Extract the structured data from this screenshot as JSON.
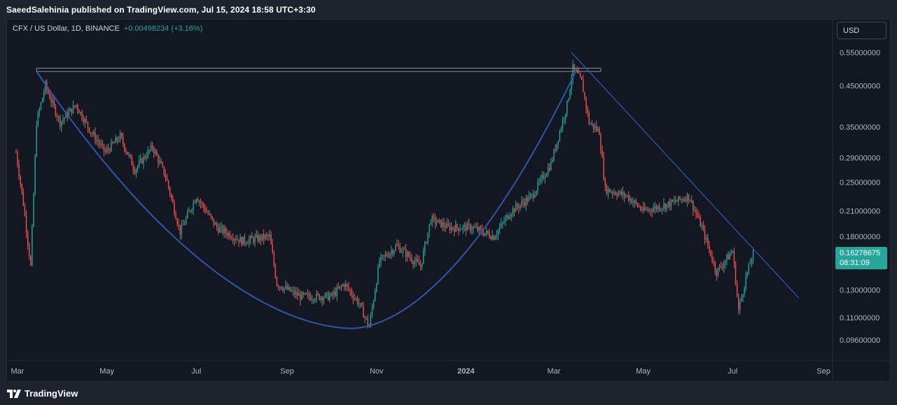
{
  "header": {
    "published": "SaeedSalehinia published on TradingView.com, Jul 15, 2024 18:58 UTC+3:30"
  },
  "legend": {
    "symbol": "CFX / US Dollar, 1D, BINANCE",
    "change": "+0.00498234 (+3.16%)"
  },
  "currency": "USD",
  "last_price": {
    "value": "0.16278675",
    "countdown": "08:31:09"
  },
  "footer": {
    "brand": "TradingView"
  },
  "colors": {
    "up": "#26a69a",
    "down": "#ef5350",
    "pattern": "#2f56a8",
    "background": "#131722",
    "axis_text": "#b2b5be"
  },
  "chart_data": {
    "type": "candlestick",
    "title": "CFX / US Dollar, 1D, BINANCE",
    "scale": "log",
    "grid": false,
    "x_ticks": [
      "Mar",
      "May",
      "Jul",
      "Sep",
      "Nov",
      "2024",
      "Mar",
      "May",
      "Jul",
      "Sep"
    ],
    "y_ticks": [
      "0.55000000",
      "0.45000000",
      "0.35000000",
      "0.29000000",
      "0.25000000",
      "0.21000000",
      "0.18000000",
      "0.13000000",
      "0.11000000",
      "0.09600000"
    ],
    "y_tick_values": [
      0.55,
      0.45,
      0.35,
      0.29,
      0.25,
      0.21,
      0.18,
      0.13,
      0.11,
      0.096
    ],
    "price_path": [
      [
        "2023-02-28",
        0.3
      ],
      [
        "2023-03-05",
        0.22
      ],
      [
        "2023-03-10",
        0.15
      ],
      [
        "2023-03-14",
        0.36
      ],
      [
        "2023-03-20",
        0.45
      ],
      [
        "2023-03-30",
        0.36
      ],
      [
        "2023-04-10",
        0.4
      ],
      [
        "2023-04-20",
        0.34
      ],
      [
        "2023-04-30",
        0.3
      ],
      [
        "2023-05-10",
        0.33
      ],
      [
        "2023-05-20",
        0.27
      ],
      [
        "2023-06-01",
        0.31
      ],
      [
        "2023-06-10",
        0.26
      ],
      [
        "2023-06-20",
        0.185
      ],
      [
        "2023-07-01",
        0.23
      ],
      [
        "2023-07-15",
        0.19
      ],
      [
        "2023-08-01",
        0.175
      ],
      [
        "2023-08-20",
        0.18
      ],
      [
        "2023-08-25",
        0.135
      ],
      [
        "2023-09-10",
        0.125
      ],
      [
        "2023-10-01",
        0.125
      ],
      [
        "2023-10-10",
        0.135
      ],
      [
        "2023-10-20",
        0.12
      ],
      [
        "2023-10-27",
        0.104
      ],
      [
        "2023-11-03",
        0.155
      ],
      [
        "2023-11-15",
        0.17
      ],
      [
        "2023-12-01",
        0.15
      ],
      [
        "2023-12-08",
        0.2
      ],
      [
        "2023-12-20",
        0.19
      ],
      [
        "2024-01-05",
        0.19
      ],
      [
        "2024-01-20",
        0.18
      ],
      [
        "2024-02-01",
        0.21
      ],
      [
        "2024-02-15",
        0.23
      ],
      [
        "2024-02-28",
        0.28
      ],
      [
        "2024-03-10",
        0.4
      ],
      [
        "2024-03-14",
        0.5
      ],
      [
        "2024-03-20",
        0.46
      ],
      [
        "2024-03-25",
        0.36
      ],
      [
        "2024-04-01",
        0.34
      ],
      [
        "2024-04-05",
        0.24
      ],
      [
        "2024-04-20",
        0.23
      ],
      [
        "2024-05-01",
        0.21
      ],
      [
        "2024-05-20",
        0.22
      ],
      [
        "2024-06-01",
        0.23
      ],
      [
        "2024-06-10",
        0.19
      ],
      [
        "2024-06-20",
        0.145
      ],
      [
        "2024-07-01",
        0.165
      ],
      [
        "2024-07-05",
        0.115
      ],
      [
        "2024-07-10",
        0.14
      ],
      [
        "2024-07-15",
        0.16278675
      ]
    ],
    "annotations": [
      {
        "type": "horizontal-box",
        "from": [
          "2023-03-14",
          0.49
        ],
        "to": [
          "2024-04-02",
          0.5
        ]
      },
      {
        "type": "trendline",
        "from": [
          "2024-03-13",
          0.55
        ],
        "to": [
          "2024-08-15",
          0.124
        ]
      },
      {
        "type": "cup-curve",
        "from": [
          "2023-03-14",
          0.49
        ],
        "bottom": [
          "2023-10-15",
          0.103
        ],
        "to": [
          "2024-03-17",
          0.5
        ]
      }
    ]
  }
}
